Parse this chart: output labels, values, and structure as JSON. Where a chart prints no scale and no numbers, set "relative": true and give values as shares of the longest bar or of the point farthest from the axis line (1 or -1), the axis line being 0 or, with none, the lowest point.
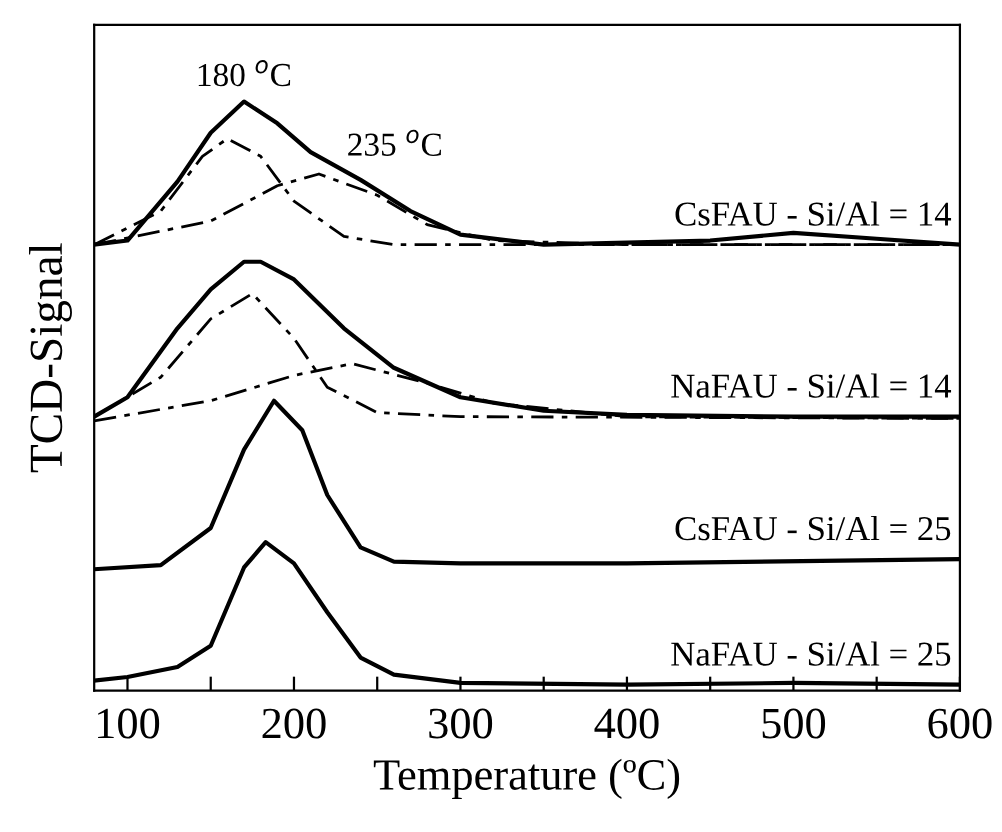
{
  "chart_data": {
    "type": "line",
    "relative": true,
    "xlabel": "Temperature (ºC)",
    "ylabel": "TCD-Signal",
    "xlim": [
      80,
      600
    ],
    "xticks": [
      100,
      {
        "value": 150,
        "label": null
      },
      200,
      {
        "value": 250,
        "label": null
      },
      300,
      {
        "value": 350,
        "label": null
      },
      400,
      {
        "value": 450,
        "label": null
      },
      500,
      {
        "value": 550,
        "label": null
      },
      600
    ],
    "annotations": [
      {
        "text": "180 $^{o}$C",
        "x": 170,
        "y": 1.0
      },
      {
        "text": "235 $^{o}$C",
        "x": 215,
        "y": 0.877
      }
    ],
    "legend": false,
    "grid": false,
    "series": [
      {
        "name": "CsFAU - Si/Al = 14",
        "color": "#000000",
        "line_style": "solid",
        "x": [
          80,
          100,
          130,
          150,
          170,
          190,
          210,
          240,
          270,
          300,
          350,
          450,
          500,
          550,
          600
        ],
        "values": [
          0.757,
          0.764,
          0.864,
          0.947,
          1.0,
          0.963,
          0.914,
          0.867,
          0.814,
          0.774,
          0.757,
          0.764,
          0.777,
          0.767,
          0.757
        ]
      },
      {
        "color": "#000000",
        "line_style": "dashed",
        "x": [
          80,
          120,
          145,
          160,
          180,
          200,
          230,
          260,
          600
        ],
        "values": [
          0.757,
          0.814,
          0.907,
          0.937,
          0.907,
          0.831,
          0.771,
          0.757,
          0.757
        ]
      },
      {
        "color": "#000000",
        "line_style": "dashed",
        "x": [
          80,
          150,
          190,
          215,
          250,
          280,
          320,
          400,
          600
        ],
        "values": [
          0.757,
          0.797,
          0.857,
          0.877,
          0.841,
          0.791,
          0.764,
          0.757,
          0.757
        ]
      },
      {
        "name": "NaFAU - Si/Al = 14",
        "color": "#000000",
        "line_style": "solid",
        "x": [
          80,
          100,
          130,
          150,
          170,
          180,
          200,
          230,
          260,
          300,
          350,
          400,
          500,
          600
        ],
        "values": [
          0.465,
          0.498,
          0.615,
          0.681,
          0.728,
          0.728,
          0.698,
          0.615,
          0.548,
          0.498,
          0.475,
          0.468,
          0.465,
          0.465
        ]
      },
      {
        "color": "#000000",
        "line_style": "dashed",
        "x": [
          80,
          120,
          150,
          175,
          200,
          220,
          250,
          300,
          600
        ],
        "values": [
          0.465,
          0.532,
          0.631,
          0.674,
          0.598,
          0.515,
          0.472,
          0.465,
          0.462
        ]
      },
      {
        "color": "#000000",
        "line_style": "dashed",
        "x": [
          80,
          150,
          200,
          235,
          280,
          320,
          400,
          600
        ],
        "values": [
          0.458,
          0.492,
          0.535,
          0.555,
          0.522,
          0.488,
          0.465,
          0.462
        ]
      },
      {
        "name": "CsFAU - Si/Al = 25",
        "color": "#000000",
        "line_style": "solid",
        "x": [
          80,
          120,
          150,
          170,
          188,
          205,
          220,
          240,
          260,
          300,
          400,
          600
        ],
        "values": [
          0.206,
          0.213,
          0.276,
          0.409,
          0.492,
          0.442,
          0.332,
          0.243,
          0.219,
          0.216,
          0.216,
          0.223
        ]
      },
      {
        "name": "NaFAU - Si/Al = 25",
        "color": "#000000",
        "line_style": "solid",
        "x": [
          80,
          100,
          130,
          150,
          170,
          183,
          200,
          220,
          240,
          260,
          300,
          400,
          500,
          600
        ],
        "values": [
          0.017,
          0.023,
          0.04,
          0.076,
          0.209,
          0.252,
          0.216,
          0.133,
          0.056,
          0.027,
          0.013,
          0.01,
          0.013,
          0.01
        ]
      }
    ]
  }
}
